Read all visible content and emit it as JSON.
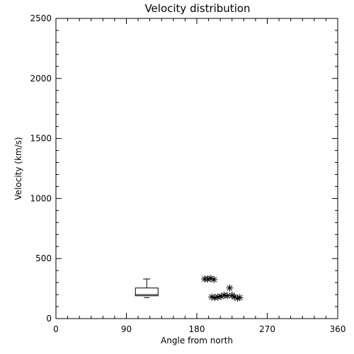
{
  "chart_data": {
    "type": "scatter",
    "title": "Velocity distribution",
    "xlabel": "Angle from north",
    "ylabel": "Velocity (km/s)",
    "xlim": [
      0,
      360
    ],
    "ylim": [
      0,
      2500
    ],
    "xticks": [
      0,
      90,
      180,
      270,
      360
    ],
    "yticks": [
      0,
      500,
      1000,
      1500,
      2000,
      2500
    ],
    "xtick_labels": [
      "0",
      "90",
      "180",
      "270",
      "360"
    ],
    "ytick_labels": [
      "0",
      "500",
      "1000",
      "1500",
      "2000",
      "2500"
    ],
    "grid": false,
    "box": {
      "x": 116,
      "min": 175,
      "q1": 190,
      "median": 200,
      "q3": 255,
      "max": 330
    },
    "points": [
      {
        "x": 190,
        "y": 330
      },
      {
        "x": 194,
        "y": 330
      },
      {
        "x": 198,
        "y": 335
      },
      {
        "x": 202,
        "y": 325
      },
      {
        "x": 199,
        "y": 180
      },
      {
        "x": 203,
        "y": 175
      },
      {
        "x": 207,
        "y": 180
      },
      {
        "x": 211,
        "y": 185
      },
      {
        "x": 215,
        "y": 195
      },
      {
        "x": 219,
        "y": 190
      },
      {
        "x": 222,
        "y": 255
      },
      {
        "x": 225,
        "y": 195
      },
      {
        "x": 228,
        "y": 180
      },
      {
        "x": 232,
        "y": 170
      },
      {
        "x": 235,
        "y": 175
      }
    ],
    "marker": "asterisk",
    "line_color": "#000000"
  }
}
